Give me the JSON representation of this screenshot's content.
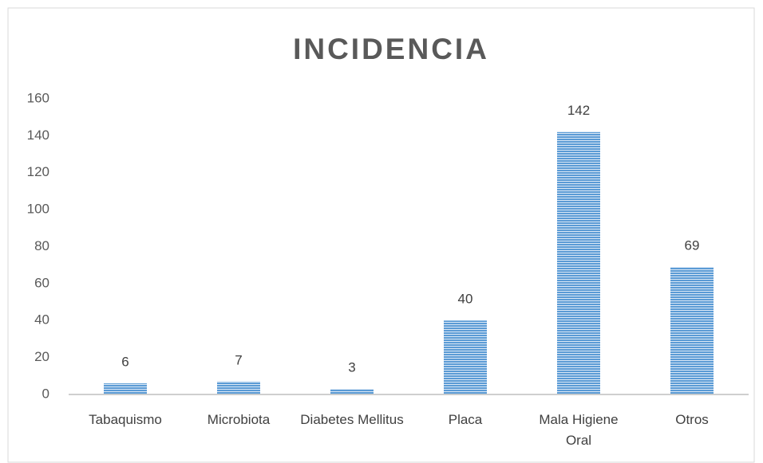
{
  "chart_data": {
    "type": "bar",
    "title": "INCIDENCIA",
    "categories": [
      "Tabaquismo",
      "Microbiota",
      "Diabetes Mellitus",
      "Placa",
      "Mala Higiene Oral",
      "Otros"
    ],
    "values": [
      6,
      7,
      3,
      40,
      142,
      69
    ],
    "color": "#5b9bd5",
    "ylim": [
      0,
      160
    ],
    "yticks": [
      0,
      20,
      40,
      60,
      80,
      100,
      120,
      140,
      160
    ],
    "grid": false
  }
}
